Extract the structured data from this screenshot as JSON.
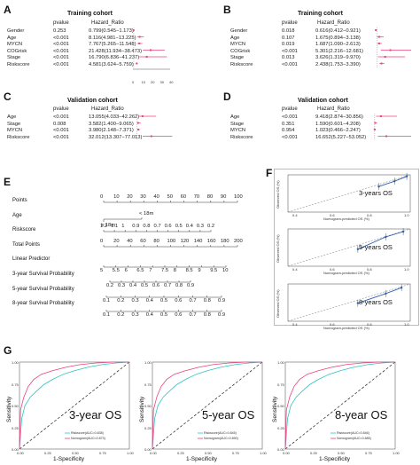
{
  "panels": {
    "A": {
      "letter": "A",
      "title": "Training cohort",
      "col_pvalue": "pvalue",
      "col_hr": "Hazard_Ratio",
      "rows": [
        {
          "name": "Gender",
          "p": "0.253",
          "hr": "0.799(0.545−1.173)"
        },
        {
          "name": "Age",
          "p": "<0.001",
          "hr": "8.116(4.981−13.225)"
        },
        {
          "name": "MYCN",
          "p": "<0.001",
          "hr": "7.767(5.265−11.548)"
        },
        {
          "name": "COGrisk",
          "p": "<0.001",
          "hr": "21.428(11.934−38.473)"
        },
        {
          "name": "Stage",
          "p": "<0.001",
          "hr": "16.790(6.836−41.237)"
        },
        {
          "name": "Riskscore",
          "p": "<0.001",
          "hr": "4.581(3.624−5.759)"
        }
      ],
      "axis_ticks": [
        "0",
        "10",
        "20",
        "30",
        "40"
      ]
    },
    "B": {
      "letter": "B",
      "title": "Training cohort",
      "col_pvalue": "pvalue",
      "col_hr": "Hazard_Ratio",
      "rows": [
        {
          "name": "Gender",
          "p": "0.018",
          "hr": "0.616(0.412−0.921)"
        },
        {
          "name": "Age",
          "p": "0.107",
          "hr": "1.675(0.894−3.138)"
        },
        {
          "name": "MYCN",
          "p": "0.019",
          "hr": "1.687(1.090−2.613)"
        },
        {
          "name": "COGrisk",
          "p": "<0.001",
          "hr": "5.301(2.216−12.681)"
        },
        {
          "name": "Stage",
          "p": "0.013",
          "hr": "3.626(1.319−9.970)"
        },
        {
          "name": "Riskscore",
          "p": "<0.001",
          "hr": "2.438(1.753−3.390)"
        }
      ]
    },
    "C": {
      "letter": "C",
      "title": "Validation cohort",
      "col_pvalue": "pvalue",
      "col_hr": "Hazard_Ratio",
      "rows": [
        {
          "name": "Age",
          "p": "<0.001",
          "hr": "13.055(4.033−42.262)"
        },
        {
          "name": "Stage",
          "p": "0.008",
          "hr": "3.582(1.400−9.065)"
        },
        {
          "name": "MYCN",
          "p": "<0.001",
          "hr": "3.980(2.148−7.371)"
        },
        {
          "name": "Riskscore",
          "p": "<0.001",
          "hr": "32.012(13.307−77.013)"
        }
      ]
    },
    "D": {
      "letter": "D",
      "title": "Validation cohort",
      "col_pvalue": "pvalue",
      "col_hr": "Hazard_Ratio",
      "rows": [
        {
          "name": "Age",
          "p": "<0.001",
          "hr": "9.418(2.874−30.856)"
        },
        {
          "name": "Stage",
          "p": "0.351",
          "hr": "1.590(0.601−4.208)"
        },
        {
          "name": "MYCN",
          "p": "0.954",
          "hr": "1.023(0.466−2.247)"
        },
        {
          "name": "Riskscore",
          "p": "<0.001",
          "hr": "16.652(5.227−53.052)"
        }
      ]
    },
    "E": {
      "letter": "E",
      "rows": [
        {
          "name": "Points",
          "ticks": [
            "0",
            "10",
            "20",
            "30",
            "40",
            "50",
            "60",
            "70",
            "80",
            "90",
            "100"
          ]
        },
        {
          "name": "Age",
          "ticks": [
            "< 18m",
            "≥ 18m"
          ]
        },
        {
          "name": "Riskscore",
          "ticks": [
            "1.2",
            "1.1",
            "1",
            "0.9",
            "0.8",
            "0.7",
            "0.6",
            "0.5",
            "0.4",
            "0.3",
            "0.2"
          ]
        },
        {
          "name": "Total Points",
          "ticks": [
            "0",
            "20",
            "40",
            "60",
            "80",
            "100",
            "120",
            "140",
            "160",
            "180",
            "200"
          ]
        },
        {
          "name": "Linear Predictor",
          "ticks": [
            "5",
            "5.5",
            "6",
            "6.5",
            "7",
            "7.5",
            "8",
            "8.5",
            "9",
            "9.5",
            "10"
          ]
        },
        {
          "name": "3-year Survival Probability",
          "ticks": [
            "0.2",
            "0.3",
            "0.4",
            "0.5",
            "0.6",
            "0.7",
            "0.8",
            "0.9"
          ]
        },
        {
          "name": "5-year Survival Probability",
          "ticks": [
            "0.1",
            "0.2",
            "0.3",
            "0.4",
            "0.5",
            "0.6",
            "0.7",
            "0.8",
            "0.9"
          ]
        },
        {
          "name": "8-year Survival Probability",
          "ticks": [
            "0.1",
            "0.2",
            "0.3",
            "0.4",
            "0.5",
            "0.6",
            "0.7",
            "0.8",
            "0.9"
          ]
        }
      ]
    },
    "F": {
      "letter": "F",
      "ylabel": "Observed OS (%)",
      "xlabel": "Nomogram-predicted OS (%)",
      "plots": [
        {
          "label": "3-years OS",
          "points": [
            [
              0.82,
              0.78
            ],
            [
              0.91,
              0.88
            ],
            [
              0.98,
              0.97
            ]
          ]
        },
        {
          "label": "5-years OS",
          "points": [
            [
              0.7,
              0.62
            ],
            [
              0.86,
              0.85
            ],
            [
              0.96,
              0.95
            ]
          ]
        },
        {
          "label": "8-years OS",
          "points": [
            [
              0.7,
              0.64
            ],
            [
              0.86,
              0.82
            ],
            [
              0.95,
              0.93
            ]
          ]
        }
      ],
      "x_ticks": [
        "0.4",
        "0.6",
        "0.8",
        "1.0"
      ]
    },
    "G": {
      "letter": "G",
      "xlabel": "1-Specificity",
      "ylabel": "Sensitivity",
      "y_ticks": [
        "0.00",
        "0.25",
        "0.50",
        "0.75",
        "1.00"
      ],
      "x_ticks": [
        "0.00",
        "0.25",
        "0.50",
        "0.75",
        "1.00"
      ],
      "plots": [
        {
          "label": "3-year OS",
          "legend1": "Riskscore(AUC=0.838)",
          "legend2": "Nomogram(AUC=0.873)"
        },
        {
          "label": "5-year OS",
          "legend1": "Riskscore(AUC=0.845)",
          "legend2": "Nomogram(AUC=0.890)"
        },
        {
          "label": "8-year OS",
          "legend1": "Riskscore(AUC=0.846)",
          "legend2": "Nomogram(AUC=0.885)"
        }
      ]
    }
  },
  "colors": {
    "accent": "#e8457a",
    "calib": "#2f5fb0",
    "teal": "#26c6c0",
    "pink": "#f03c7a",
    "border": "#bbbbbb"
  }
}
